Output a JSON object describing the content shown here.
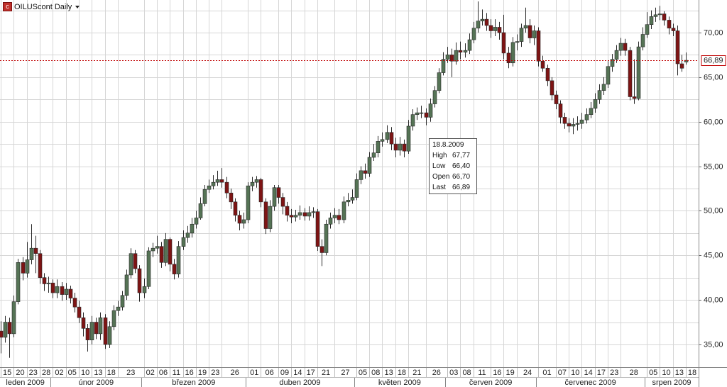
{
  "chart_data": {
    "type": "candlestick",
    "title": "OILUScont Daily",
    "up_color": "#557355",
    "down_color": "#7e1414",
    "ylim": [
      32.45,
      73.66
    ],
    "yticks": [
      {
        "value": 35,
        "label": "35,00"
      },
      {
        "value": 40,
        "label": "40,00"
      },
      {
        "value": 45,
        "label": "45,00"
      },
      {
        "value": 50,
        "label": "50,00"
      },
      {
        "value": 55,
        "label": "55,00"
      },
      {
        "value": 60,
        "label": "60,00"
      },
      {
        "value": 65,
        "label": "65,00"
      },
      {
        "value": 70,
        "label": "70,00"
      }
    ],
    "ygrid": [
      35,
      37.5,
      40,
      42.5,
      45,
      47.5,
      50,
      52.5,
      55,
      57.5,
      60,
      62.5,
      65,
      67.5,
      70,
      72.5
    ],
    "last_line": {
      "value": 66.89,
      "label": "66,89",
      "color": "#c00000"
    },
    "categories": [
      "15",
      null,
      null,
      "20",
      null,
      null,
      "23",
      null,
      null,
      "28",
      null,
      null,
      "02",
      null,
      null,
      "05",
      null,
      null,
      "10",
      null,
      null,
      "13",
      null,
      null,
      "18",
      null,
      null,
      "23",
      null,
      null,
      null,
      null,
      null,
      "02",
      null,
      null,
      "06",
      null,
      null,
      "11",
      null,
      null,
      "16",
      null,
      null,
      "19",
      null,
      null,
      "23",
      null,
      null,
      "26",
      null,
      null,
      null,
      null,
      null,
      "01",
      null,
      null,
      "06",
      null,
      null,
      null,
      "09",
      null,
      null,
      "14",
      null,
      null,
      "17",
      null,
      null,
      "21",
      null,
      null,
      null,
      "27",
      null,
      null,
      null,
      null,
      "05",
      null,
      null,
      "08",
      null,
      null,
      "13",
      null,
      null,
      "18",
      null,
      null,
      "21",
      null,
      null,
      null,
      "26",
      null,
      null,
      null,
      null,
      "03",
      null,
      null,
      "08",
      null,
      null,
      "11",
      null,
      null,
      null,
      "16",
      null,
      null,
      "19",
      null,
      null,
      "24",
      null,
      null,
      null,
      null,
      "01",
      null,
      null,
      null,
      "07",
      null,
      null,
      "10",
      null,
      null,
      "14",
      null,
      null,
      "17",
      null,
      null,
      "23",
      null,
      null,
      "28",
      null,
      null,
      null,
      null,
      null,
      "05",
      null,
      null,
      "10",
      null,
      null,
      "13",
      null,
      null,
      "18"
    ],
    "months": [
      "leden 2009",
      "únor 2009",
      "březen 2009",
      "duben 2009",
      "květen 2009",
      "červen 2009",
      "červenec 2009",
      "srpen 2009"
    ],
    "open": [
      36.5,
      35.8,
      37.5,
      36.2,
      39.8,
      44.2,
      43.0,
      44.5,
      45.8,
      45.2,
      42.5,
      41.8,
      41.9,
      40.8,
      41.5,
      40.6,
      41.2,
      40.2,
      39.2,
      38.0,
      36.8,
      35.5,
      37.5,
      36.2,
      38.0,
      35.0,
      37.0,
      38.8,
      39.2,
      40.5,
      42.8,
      45.2,
      43.5,
      40.8,
      41.5,
      45.5,
      45.8,
      46.0,
      44.2,
      46.8,
      44.0,
      42.9,
      46.0,
      47.0,
      47.5,
      48.5,
      49.2,
      50.8,
      52.4,
      52.8,
      53.2,
      53.5,
      53.2,
      52.0,
      51.0,
      49.5,
      48.6,
      49.0,
      52.8,
      53.2,
      53.5,
      51.0,
      48.0,
      50.5,
      52.6,
      51.5,
      50.5,
      49.5,
      49.3,
      49.5,
      49.8,
      49.4,
      49.8,
      49.9,
      46.0,
      45.3,
      48.5,
      49.2,
      49.5,
      49.0,
      51.0,
      51.2,
      51.5,
      53.5,
      54.5,
      54.2,
      56.0,
      56.5,
      57.8,
      58.0,
      58.8,
      57.5,
      56.8,
      57.5,
      56.7,
      59.5,
      60.8,
      61.0,
      61.0,
      60.5,
      62.0,
      63.5,
      65.5,
      67.0,
      67.5,
      66.8,
      68.0,
      67.8,
      68.0,
      69.2,
      70.5,
      71.3,
      71.5,
      70.8,
      70.2,
      70.6,
      70.0,
      67.7,
      66.6,
      68.9,
      69.0,
      70.5,
      70.8,
      69.4,
      70.2,
      66.8,
      66.0,
      64.6,
      63.0,
      62.0,
      60.5,
      59.8,
      59.5,
      59.7,
      59.8,
      60.2,
      60.8,
      61.5,
      62.5,
      63.5,
      64.2,
      66.2,
      67.0,
      68.0,
      68.8,
      68.0,
      62.8,
      62.6,
      68.4,
      69.8,
      70.9,
      71.8,
      72.0,
      72.1,
      71.4,
      70.5,
      70.2,
      66.5,
      66.7
    ],
    "high": [
      37.6,
      38.2,
      38.0,
      40.5,
      44.6,
      44.8,
      46.5,
      48.5,
      47.2,
      45.6,
      43.0,
      42.6,
      42.3,
      42.3,
      42.0,
      41.9,
      41.6,
      40.8,
      39.9,
      38.6,
      37.3,
      38.2,
      38.0,
      38.6,
      38.4,
      37.6,
      39.4,
      39.9,
      41.0,
      43.4,
      45.8,
      45.6,
      43.9,
      42.4,
      45.9,
      46.4,
      47.2,
      46.5,
      47.5,
      47.0,
      44.6,
      46.6,
      47.8,
      48.3,
      49.2,
      50.0,
      51.5,
      52.9,
      53.5,
      54.0,
      54.5,
      54.8,
      53.8,
      52.5,
      51.4,
      50.0,
      49.8,
      53.2,
      53.8,
      53.9,
      53.7,
      51.4,
      51.2,
      52.9,
      52.9,
      52.0,
      51.0,
      50.2,
      50.1,
      50.6,
      50.3,
      50.5,
      50.4,
      50.2,
      46.8,
      49.0,
      49.8,
      50.3,
      50.2,
      51.6,
      52.0,
      52.4,
      54.2,
      55.0,
      55.3,
      56.6,
      57.5,
      58.4,
      58.8,
      59.6,
      59.4,
      58.2,
      58.3,
      58.0,
      60.2,
      61.4,
      61.6,
      61.8,
      61.5,
      62.6,
      64.0,
      66.0,
      67.8,
      68.4,
      68.2,
      68.9,
      69.0,
      68.8,
      69.9,
      71.2,
      73.5,
      72.6,
      72.2,
      71.5,
      71.5,
      71.2,
      72.0,
      68.4,
      69.5,
      69.8,
      71.0,
      72.8,
      71.5,
      70.8,
      70.6,
      67.4,
      66.4,
      65.0,
      63.5,
      62.4,
      61.0,
      60.4,
      60.4,
      60.6,
      61.0,
      61.5,
      62.2,
      63.2,
      64.2,
      65.0,
      66.8,
      67.6,
      68.6,
      69.4,
      69.3,
      68.4,
      67.0,
      69.0,
      70.6,
      72.3,
      72.5,
      72.8,
      73.0,
      72.4,
      71.8,
      71.0,
      70.8,
      67.5,
      67.77
    ],
    "low": [
      34.0,
      35.2,
      33.5,
      35.8,
      39.5,
      42.2,
      42.5,
      44.0,
      43.0,
      41.8,
      41.0,
      40.8,
      40.2,
      40.2,
      39.9,
      40.0,
      39.6,
      38.6,
      37.4,
      35.9,
      34.2,
      35.0,
      35.6,
      35.5,
      34.5,
      34.6,
      36.6,
      38.2,
      38.8,
      40.0,
      42.4,
      43.0,
      39.8,
      40.2,
      41.2,
      44.8,
      45.2,
      43.6,
      43.8,
      43.2,
      42.3,
      42.5,
      45.6,
      46.4,
      47.0,
      48.0,
      49.0,
      50.5,
      52.0,
      52.4,
      52.8,
      52.6,
      51.4,
      50.2,
      48.8,
      47.8,
      48.0,
      48.6,
      52.2,
      52.6,
      50.4,
      47.4,
      47.6,
      50.0,
      50.8,
      49.6,
      48.8,
      48.6,
      48.8,
      49.0,
      48.9,
      48.9,
      49.2,
      45.5,
      43.8,
      45.0,
      48.0,
      48.6,
      48.5,
      48.6,
      50.5,
      50.8,
      51.2,
      53.0,
      53.6,
      53.8,
      55.6,
      56.0,
      57.2,
      57.6,
      56.8,
      56.0,
      56.2,
      56.0,
      56.4,
      59.0,
      60.2,
      60.4,
      59.6,
      60.0,
      61.6,
      63.2,
      65.2,
      66.6,
      65.0,
      66.4,
      67.0,
      67.2,
      67.6,
      68.8,
      70.0,
      70.8,
      70.2,
      69.4,
      69.6,
      69.2,
      67.0,
      66.0,
      66.2,
      68.0,
      68.4,
      70.0,
      68.8,
      68.6,
      66.2,
      65.6,
      64.0,
      62.4,
      61.4,
      59.8,
      59.2,
      58.8,
      58.6,
      59.0,
      59.2,
      59.8,
      60.4,
      61.0,
      62.0,
      63.0,
      63.8,
      65.6,
      66.6,
      67.4,
      67.4,
      62.4,
      62.0,
      62.4,
      68.0,
      69.4,
      70.4,
      71.2,
      71.4,
      70.8,
      69.8,
      69.6,
      65.2,
      65.6,
      66.4
    ],
    "close": [
      35.8,
      37.5,
      36.2,
      39.8,
      44.2,
      43.0,
      44.5,
      45.8,
      45.2,
      42.5,
      41.8,
      41.9,
      40.8,
      41.5,
      40.6,
      41.2,
      40.2,
      39.2,
      38.0,
      36.8,
      35.5,
      37.5,
      36.2,
      38.0,
      35.0,
      37.0,
      38.8,
      39.2,
      40.5,
      42.8,
      45.2,
      43.5,
      40.8,
      41.5,
      45.5,
      45.8,
      46.0,
      44.2,
      46.8,
      44.0,
      42.9,
      46.0,
      47.0,
      47.5,
      48.5,
      49.2,
      50.8,
      52.4,
      52.8,
      53.2,
      53.5,
      53.2,
      52.0,
      51.0,
      49.5,
      48.6,
      49.0,
      52.8,
      53.2,
      53.5,
      51.0,
      48.0,
      50.5,
      52.6,
      51.5,
      50.5,
      49.5,
      49.3,
      49.5,
      49.8,
      49.4,
      49.8,
      49.9,
      46.0,
      45.3,
      48.5,
      49.2,
      49.5,
      49.0,
      51.0,
      51.2,
      51.5,
      53.5,
      54.5,
      54.2,
      56.0,
      56.5,
      57.8,
      58.0,
      58.8,
      57.5,
      56.8,
      57.5,
      56.7,
      59.5,
      60.8,
      61.0,
      61.0,
      60.5,
      62.0,
      63.5,
      65.5,
      67.0,
      67.5,
      66.8,
      68.0,
      67.8,
      68.0,
      69.2,
      70.5,
      71.3,
      71.5,
      70.8,
      70.2,
      70.6,
      70.0,
      67.7,
      66.6,
      68.9,
      69.0,
      70.5,
      70.8,
      69.4,
      70.2,
      66.8,
      66.0,
      64.6,
      63.0,
      62.0,
      60.5,
      59.8,
      59.5,
      59.7,
      59.8,
      60.2,
      60.8,
      61.5,
      62.5,
      63.5,
      64.2,
      66.2,
      67.0,
      68.0,
      68.8,
      68.0,
      62.8,
      62.6,
      68.4,
      69.8,
      70.9,
      71.8,
      72.0,
      72.1,
      71.4,
      70.5,
      70.2,
      66.5,
      66.0,
      66.89
    ],
    "tooltip": {
      "date": "18.8.2009",
      "rows": [
        [
          "High",
          "67,77"
        ],
        [
          "Low",
          "66,40"
        ],
        [
          "Open",
          "66,70"
        ],
        [
          "Last",
          "66,89"
        ]
      ]
    }
  }
}
